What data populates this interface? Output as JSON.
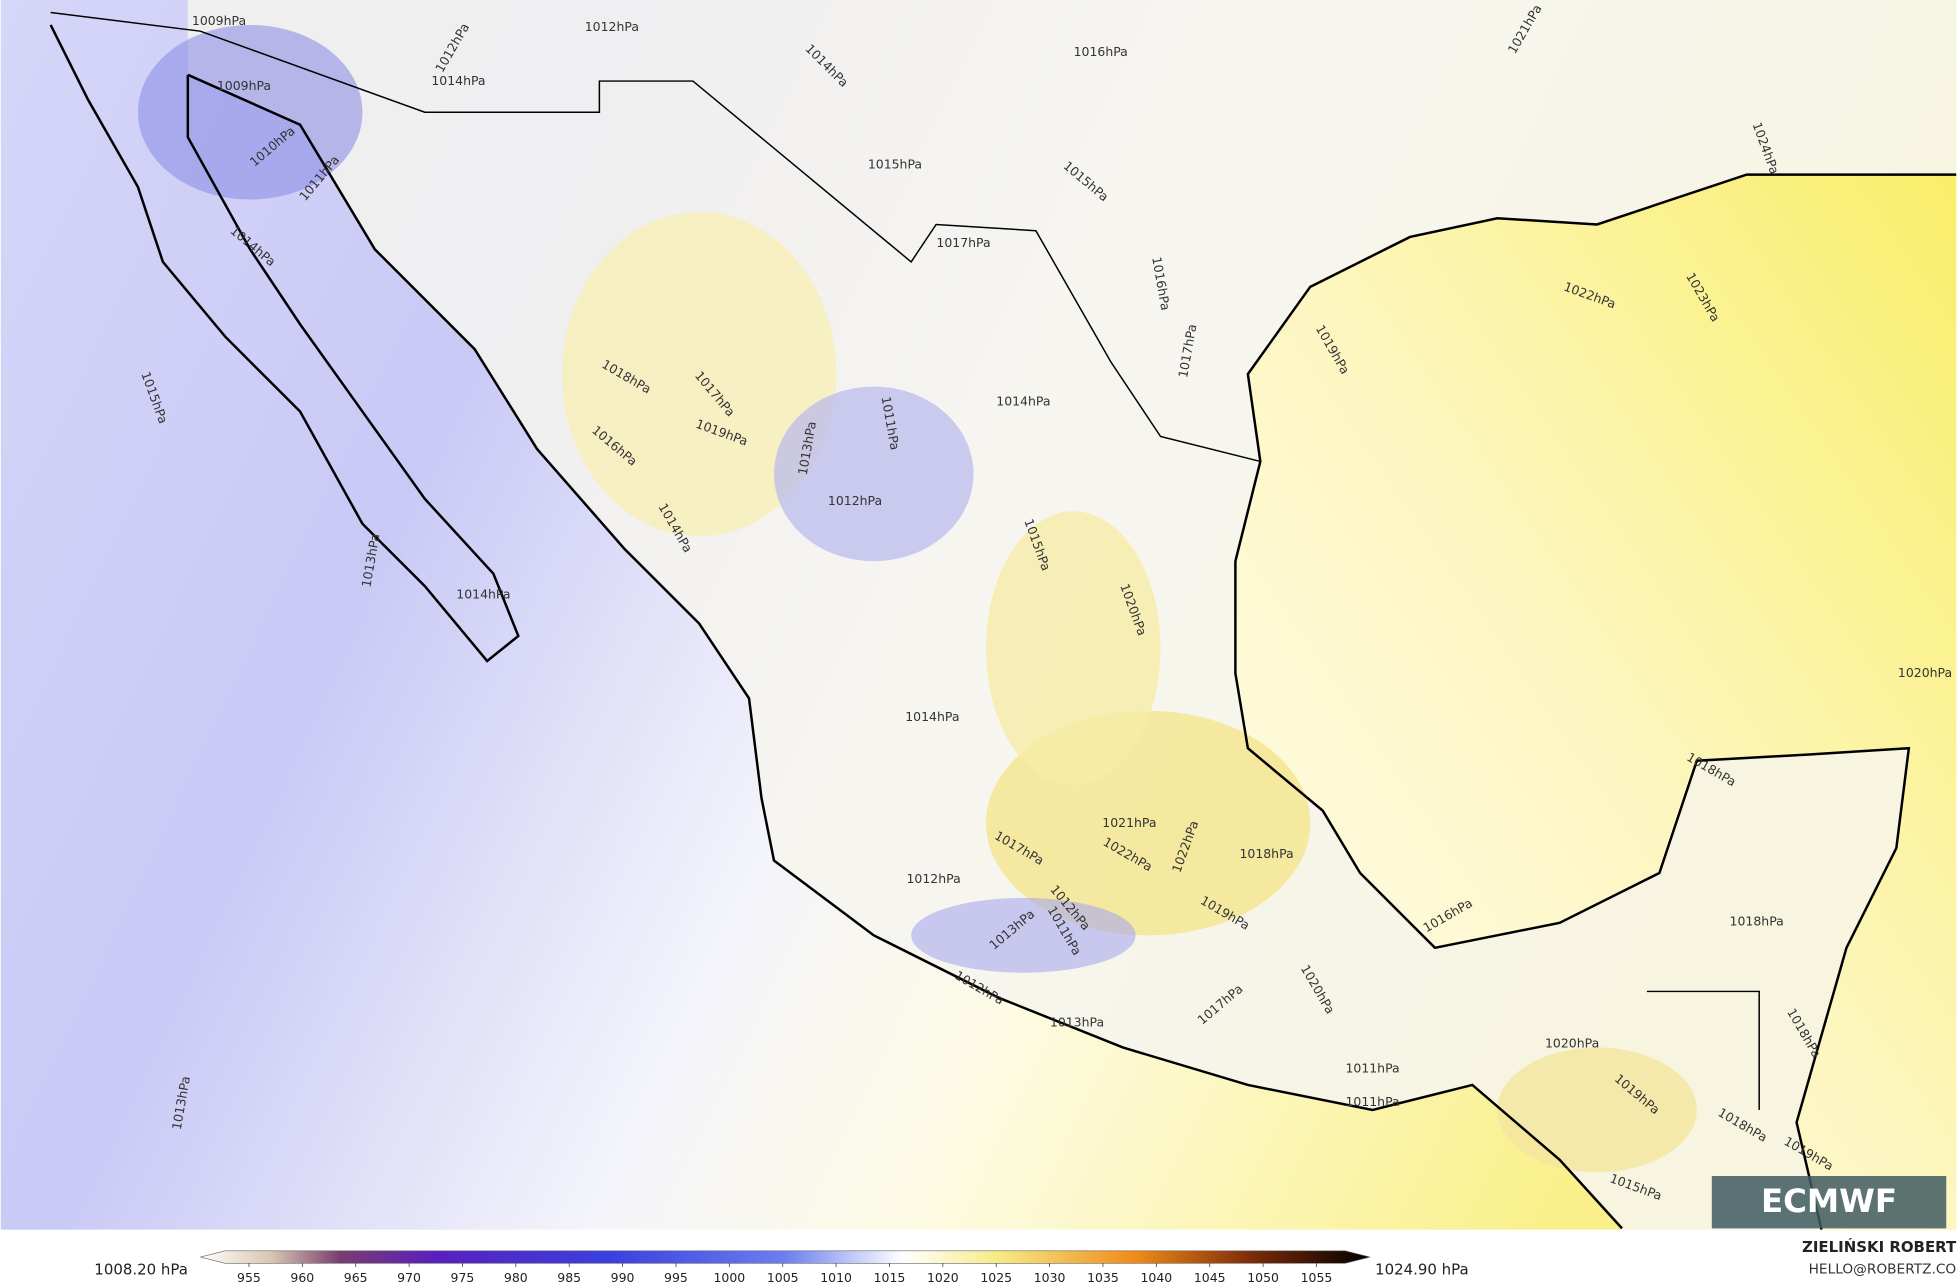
{
  "map": {
    "contour_labels": [
      "1009hPa",
      "1012hPa",
      "1012hPa",
      "1014hPa",
      "1014hPa",
      "1009hPa",
      "1010hPa",
      "1011hPa",
      "1016hPa",
      "1021hPa",
      "1015hPa",
      "1015hPa",
      "1024hPa",
      "1014hPa",
      "1017hPa",
      "1016hPa",
      "1022hPa",
      "1023hPa",
      "1017hPa",
      "1019hPa",
      "1015hPa",
      "1018hPa",
      "1017hPa",
      "1019hPa",
      "1011hPa",
      "1013hPa",
      "1014hPa",
      "1016hPa",
      "1012hPa",
      "1014hPa",
      "1015hPa",
      "1013hPa",
      "1014hPa",
      "1020hPa",
      "1020hPa",
      "1014hPa",
      "1018hPa",
      "1021hPa",
      "1017hPa",
      "1022hPa",
      "1022hPa",
      "1018hPa",
      "1012hPa",
      "1012hPa",
      "1011hPa",
      "1013hPa",
      "1019hPa",
      "1016hPa",
      "1018hPa",
      "1020hPa",
      "1012hPa",
      "1017hPa",
      "1013hPa",
      "1018hPa",
      "1020hPa",
      "1011hPa",
      "1011hPa",
      "1013hPa",
      "1019hPa",
      "1018hPa",
      "1019hPa",
      "1015hPa"
    ]
  },
  "colorbar": {
    "min_label": "1008.20 hPa",
    "max_label": "1024.90 hPa",
    "ticks": [
      955,
      960,
      965,
      970,
      975,
      980,
      985,
      990,
      995,
      1000,
      1005,
      1010,
      1015,
      1020,
      1025,
      1030,
      1035,
      1040,
      1045,
      1050,
      1055
    ]
  },
  "credit": {
    "author": "ZIELIŃSKI ROBERT",
    "email": "HELLO@ROBERTZ.CO",
    "logo": "ECMWF"
  }
}
